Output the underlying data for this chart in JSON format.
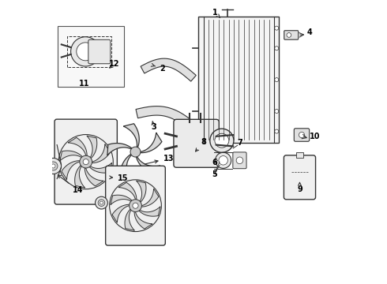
{
  "bg_color": "#ffffff",
  "line_color": "#333333",
  "label_color": "#000000"
}
